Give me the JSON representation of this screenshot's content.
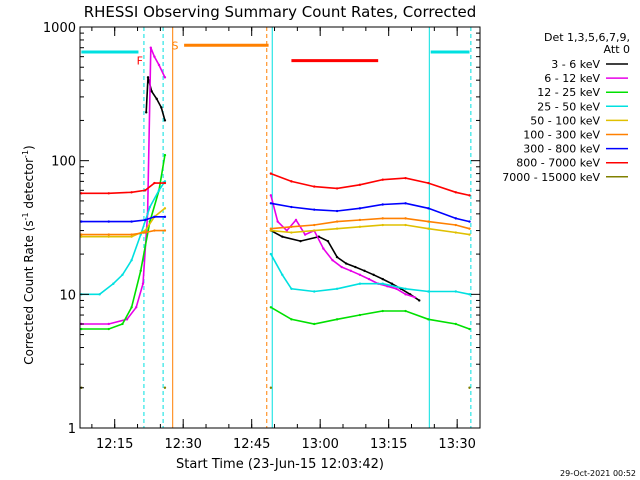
{
  "chart_data": {
    "type": "line",
    "title": "RHESSI Observing Summary Count Rates, Corrected",
    "xlabel": "Start Time (23-Jun-15 12:03:42)",
    "ylabel": "Corrected Count Rate (s",
    "ylabel_sup1": "-1",
    "ylabel_mid": " detector",
    "ylabel_sup2": "-1",
    "ylabel_end": ")",
    "y_scale": "log",
    "ylim": [
      1,
      1000
    ],
    "xlim_min": [
      3.7,
      76.3
    ],
    "x_ticks": [
      {
        "v": 11.3,
        "label": "12:15"
      },
      {
        "v": 26.3,
        "label": "12:30"
      },
      {
        "v": 41.3,
        "label": "12:45"
      },
      {
        "v": 56.3,
        "label": "13:00"
      },
      {
        "v": 71.3,
        "label": "13:15"
      },
      {
        "v": 86.3,
        "label": "13:30"
      }
    ],
    "y_ticks": [
      {
        "v": 1,
        "label": "1"
      },
      {
        "v": 10,
        "label": "10"
      },
      {
        "v": 100,
        "label": "100"
      },
      {
        "v": 1000,
        "label": "1000"
      }
    ],
    "legend_header": [
      "Det 1,3,5,6,7,9,",
      "Att 0"
    ],
    "legend_position": "right",
    "grid": false,
    "series": [
      {
        "name": "3 - 6 keV",
        "color": "#000000",
        "points": [
          [
            18.2,
            230
          ],
          [
            18.6,
            420
          ],
          [
            19.4,
            330
          ],
          [
            20.5,
            290
          ],
          [
            21.5,
            250
          ],
          [
            22.3,
            200
          ],
          [
            45.5,
            30
          ],
          [
            48,
            27
          ],
          [
            52,
            25
          ],
          [
            56,
            27
          ],
          [
            58,
            25
          ],
          [
            60,
            19
          ],
          [
            62,
            17
          ],
          [
            64,
            16
          ],
          [
            66,
            15
          ],
          [
            68,
            14
          ],
          [
            70,
            13
          ],
          [
            72,
            12
          ],
          [
            74,
            11
          ],
          [
            76,
            10
          ],
          [
            78,
            9
          ]
        ]
      },
      {
        "name": "6 - 12 keV",
        "color": "#e800e8",
        "points": [
          [
            4,
            6
          ],
          [
            10,
            6
          ],
          [
            14,
            6.5
          ],
          [
            16,
            8
          ],
          [
            17.5,
            12
          ],
          [
            18.5,
            40
          ],
          [
            19.2,
            700
          ],
          [
            20,
            600
          ],
          [
            21,
            520
          ],
          [
            22.3,
            420
          ],
          [
            45.5,
            55
          ],
          [
            47,
            35
          ],
          [
            49,
            30
          ],
          [
            51,
            36
          ],
          [
            53,
            28
          ],
          [
            55,
            30
          ],
          [
            57,
            22
          ],
          [
            59,
            18
          ],
          [
            61,
            16
          ],
          [
            63,
            15
          ],
          [
            65,
            14
          ],
          [
            67,
            13
          ],
          [
            69,
            12
          ],
          [
            71,
            11.5
          ],
          [
            73,
            11
          ],
          [
            75,
            10
          ],
          [
            77,
            9.5
          ]
        ]
      },
      {
        "name": "12 - 25 keV",
        "color": "#00e000",
        "points": [
          [
            4,
            5.5
          ],
          [
            10,
            5.5
          ],
          [
            13,
            6
          ],
          [
            15,
            8
          ],
          [
            17,
            15
          ],
          [
            19,
            35
          ],
          [
            21,
            60
          ],
          [
            22.3,
            110
          ],
          [
            45.5,
            8
          ],
          [
            50,
            6.5
          ],
          [
            55,
            6
          ],
          [
            60,
            6.5
          ],
          [
            65,
            7
          ],
          [
            70,
            7.5
          ],
          [
            75,
            7.5
          ],
          [
            80,
            6.5
          ],
          [
            86,
            6
          ],
          [
            89,
            5.5
          ]
        ]
      },
      {
        "name": "25 - 50 keV",
        "color": "#00e0e0",
        "points": [
          [
            4,
            10
          ],
          [
            8,
            10
          ],
          [
            11,
            12
          ],
          [
            13,
            14
          ],
          [
            15,
            18
          ],
          [
            17,
            28
          ],
          [
            19,
            45
          ],
          [
            21,
            60
          ],
          [
            22.3,
            70
          ],
          [
            45.5,
            20
          ],
          [
            48,
            14
          ],
          [
            50,
            11
          ],
          [
            55,
            10.5
          ],
          [
            60,
            11
          ],
          [
            65,
            12
          ],
          [
            70,
            12
          ],
          [
            75,
            11
          ],
          [
            80,
            10.5
          ],
          [
            86,
            10.5
          ],
          [
            89,
            10
          ]
        ]
      },
      {
        "name": "50 - 100 keV",
        "color": "#e0c000",
        "points": [
          [
            4,
            27
          ],
          [
            10,
            27
          ],
          [
            15,
            27
          ],
          [
            18,
            30
          ],
          [
            20,
            38
          ],
          [
            22.3,
            44
          ],
          [
            45.5,
            30
          ],
          [
            50,
            29
          ],
          [
            55,
            30
          ],
          [
            60,
            31
          ],
          [
            65,
            32
          ],
          [
            70,
            33
          ],
          [
            75,
            33
          ],
          [
            80,
            31
          ],
          [
            86,
            29
          ],
          [
            89,
            28
          ]
        ]
      },
      {
        "name": "100 - 300 keV",
        "color": "#ff8000",
        "points": [
          [
            4,
            28
          ],
          [
            10,
            28
          ],
          [
            15,
            28
          ],
          [
            18,
            29
          ],
          [
            20,
            30
          ],
          [
            22.3,
            30
          ],
          [
            45.5,
            31
          ],
          [
            50,
            32
          ],
          [
            55,
            33
          ],
          [
            60,
            35
          ],
          [
            65,
            36
          ],
          [
            70,
            37
          ],
          [
            75,
            37
          ],
          [
            80,
            35
          ],
          [
            86,
            33
          ],
          [
            89,
            31
          ]
        ]
      },
      {
        "name": "300 - 800 keV",
        "color": "#0000ff",
        "points": [
          [
            4,
            35
          ],
          [
            10,
            35
          ],
          [
            15,
            35
          ],
          [
            18,
            36
          ],
          [
            20,
            38
          ],
          [
            22.3,
            38
          ],
          [
            45.5,
            48
          ],
          [
            50,
            45
          ],
          [
            55,
            43
          ],
          [
            60,
            42
          ],
          [
            65,
            44
          ],
          [
            70,
            47
          ],
          [
            75,
            48
          ],
          [
            80,
            44
          ],
          [
            86,
            37
          ],
          [
            89,
            35
          ]
        ]
      },
      {
        "name": "800 - 7000 keV",
        "color": "#ff0000",
        "points": [
          [
            4,
            57
          ],
          [
            10,
            57
          ],
          [
            15,
            58
          ],
          [
            18,
            60
          ],
          [
            20,
            68
          ],
          [
            22.3,
            68
          ],
          [
            45.5,
            80
          ],
          [
            50,
            70
          ],
          [
            55,
            64
          ],
          [
            60,
            62
          ],
          [
            65,
            66
          ],
          [
            70,
            72
          ],
          [
            75,
            74
          ],
          [
            80,
            68
          ],
          [
            86,
            58
          ],
          [
            89,
            55
          ]
        ]
      },
      {
        "name": "7000 - 15000 keV",
        "color": "#808000",
        "points": [
          [
            4,
            2
          ],
          [
            22.3,
            2
          ],
          [
            45.5,
            2
          ],
          [
            89,
            2
          ]
        ]
      }
    ],
    "attenuator_bars": [
      {
        "x0": 4,
        "x1": 16.5,
        "y": 650,
        "color": "#00e0e0"
      },
      {
        "x0": 80.5,
        "x1": 89,
        "y": 650,
        "color": "#00e0e0"
      },
      {
        "x0": 26.5,
        "x1": 45,
        "y": 730,
        "color": "#ff8000"
      },
      {
        "x0": 50,
        "x1": 69,
        "y": 560,
        "color": "#ff0000"
      }
    ],
    "annotations": [
      {
        "text": "F",
        "x": 16.8,
        "y": 560,
        "color": "#ff0000"
      },
      {
        "text": "S",
        "x": 24.5,
        "y": 730,
        "color": "#ff8000"
      }
    ],
    "vlines": [
      {
        "x": 17.7,
        "color": "#00e0e0"
      },
      {
        "x": 21.9,
        "color": "#00e0e0"
      },
      {
        "x": 24.0,
        "color": "#ff8000",
        "solid": true
      },
      {
        "x": 44.6,
        "color": "#ff8000"
      },
      {
        "x": 45.8,
        "color": "#00e0e0",
        "solid": true
      },
      {
        "x": 80.2,
        "color": "#00e0e0",
        "solid": true
      },
      {
        "x": 89.3,
        "color": "#00e0e0"
      }
    ]
  },
  "footer": {
    "timestamp": "29-Oct-2021 00:52"
  }
}
